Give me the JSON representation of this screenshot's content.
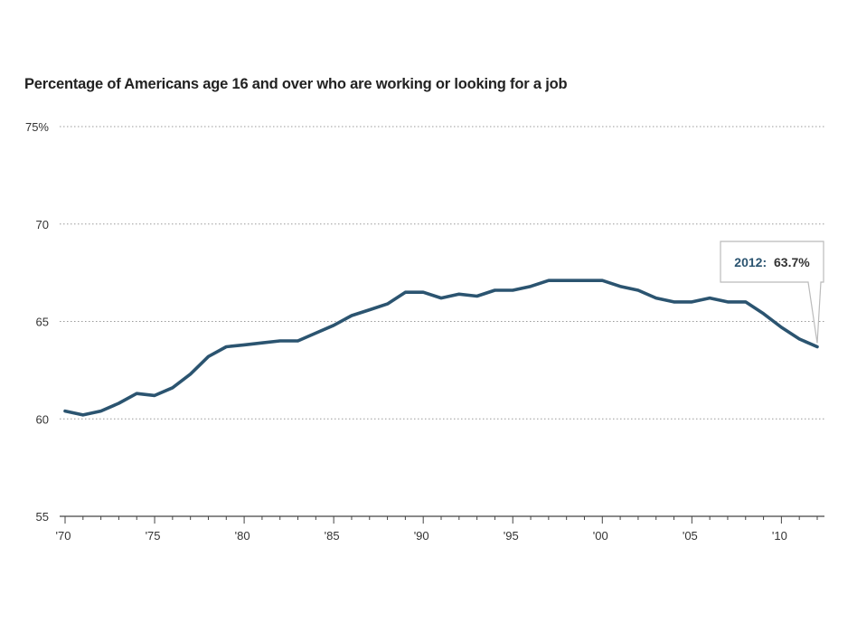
{
  "chart_data": {
    "type": "line",
    "title": "Percentage of Americans age 16 and over who are working or looking for a job",
    "xlabel": "",
    "ylabel": "",
    "ylim": [
      55,
      75
    ],
    "xlim": [
      1970,
      2012
    ],
    "y_ticks": [
      {
        "value": 75,
        "label": "75%"
      },
      {
        "value": 70,
        "label": "70"
      },
      {
        "value": 65,
        "label": "65"
      },
      {
        "value": 60,
        "label": "60"
      },
      {
        "value": 55,
        "label": "55"
      }
    ],
    "x_tick_labels": [
      {
        "value": 1970,
        "label": "'70"
      },
      {
        "value": 1975,
        "label": "'75"
      },
      {
        "value": 1980,
        "label": "'80"
      },
      {
        "value": 1985,
        "label": "'85"
      },
      {
        "value": 1990,
        "label": "'90"
      },
      {
        "value": 1995,
        "label": "'95"
      },
      {
        "value": 2000,
        "label": "'00"
      },
      {
        "value": 2005,
        "label": "'05"
      },
      {
        "value": 2010,
        "label": "'10"
      }
    ],
    "grid": "horizontal dotted",
    "line_color": "#2b5470",
    "series": [
      {
        "x": [
          1970,
          1971,
          1972,
          1973,
          1974,
          1975,
          1976,
          1977,
          1978,
          1979,
          1980,
          1981,
          1982,
          1983,
          1984,
          1985,
          1986,
          1987,
          1988,
          1989,
          1990,
          1991,
          1992,
          1993,
          1994,
          1995,
          1996,
          1997,
          1998,
          1999,
          2000,
          2001,
          2002,
          2003,
          2004,
          2005,
          2006,
          2007,
          2008,
          2009,
          2010,
          2011,
          2012
        ],
        "values": [
          60.4,
          60.2,
          60.4,
          60.8,
          61.3,
          61.2,
          61.6,
          62.3,
          63.2,
          63.7,
          63.8,
          63.9,
          64.0,
          64.0,
          64.4,
          64.8,
          65.3,
          65.6,
          65.9,
          66.5,
          66.5,
          66.2,
          66.4,
          66.3,
          66.6,
          66.6,
          66.8,
          67.1,
          67.1,
          67.1,
          67.1,
          66.8,
          66.6,
          66.2,
          66.0,
          66.0,
          66.2,
          66.0,
          66.0,
          65.4,
          64.7,
          64.1,
          63.7
        ]
      }
    ],
    "callout": {
      "year_label": "2012:",
      "value_label": "63.7%",
      "x": 2012,
      "y": 63.7,
      "year_color": "#2b5470"
    }
  }
}
